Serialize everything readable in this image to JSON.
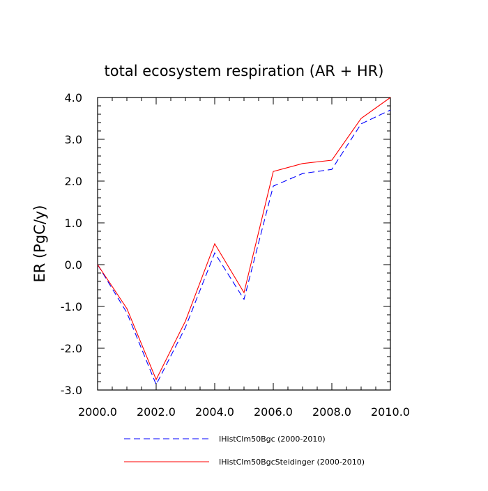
{
  "chart_data": {
    "type": "line",
    "title": "total ecosystem respiration (AR + HR)",
    "xlabel": "",
    "ylabel": "ER  (PgC/y)",
    "xlim": [
      2000,
      2010
    ],
    "ylim": [
      -3,
      4
    ],
    "x_ticks": [
      "2000.0",
      "2002.0",
      "2004.0",
      "2006.0",
      "2008.0",
      "2010.0"
    ],
    "y_ticks": [
      "-3.0",
      "-2.0",
      "-1.0",
      "0.0",
      "1.0",
      "2.0",
      "3.0",
      "4.0"
    ],
    "x": [
      2000,
      2001,
      2002,
      2003,
      2004,
      2005,
      2006,
      2007,
      2008,
      2009,
      2010
    ],
    "series": [
      {
        "name": "IHistClm50Bgc (2000-2010)",
        "color": "#0000ff",
        "style": "dashed",
        "values": [
          0.0,
          -1.15,
          -2.87,
          -1.5,
          0.28,
          -0.83,
          1.88,
          2.18,
          2.28,
          3.37,
          3.7
        ]
      },
      {
        "name": "IHistClm50BgcSteidinger (2000-2010)",
        "color": "#ff0000",
        "style": "solid",
        "values": [
          0.0,
          -1.05,
          -2.75,
          -1.35,
          0.5,
          -0.67,
          2.23,
          2.42,
          2.5,
          3.5,
          4.0
        ]
      }
    ],
    "grid": false,
    "legend_position": "bottom"
  }
}
